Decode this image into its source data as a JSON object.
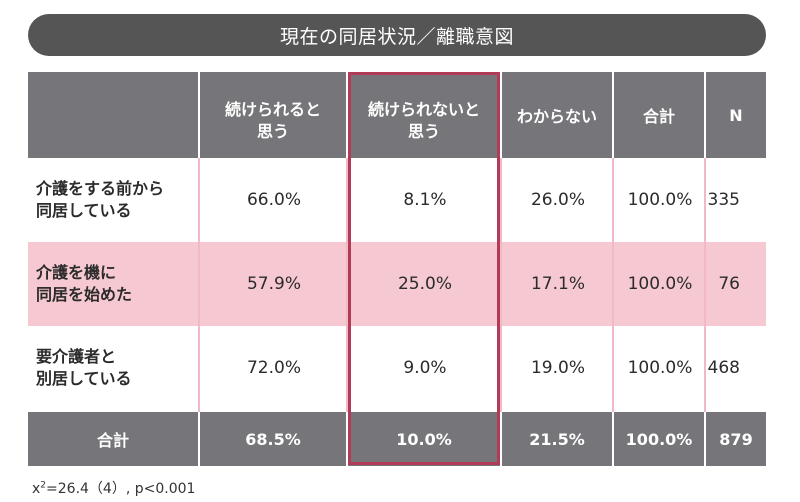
{
  "title": "現在の同居状況／離職意図",
  "chart_data": {
    "type": "table",
    "columns": [
      "",
      "続けられると\n思う",
      "続けられないと\n思う",
      "わからない",
      "合計",
      "N"
    ],
    "rows": [
      {
        "label": "介護をする前から\n同居している",
        "values": [
          "66.0%",
          "8.1%",
          "26.0%",
          "100.0%",
          "335"
        ]
      },
      {
        "label": "介護を機に\n同居を始めた",
        "values": [
          "57.9%",
          "25.0%",
          "17.1%",
          "100.0%",
          "76"
        ]
      },
      {
        "label": "要介護者と\n別居している",
        "values": [
          "72.0%",
          "9.0%",
          "19.0%",
          "100.0%",
          "468"
        ]
      }
    ],
    "total_row": {
      "label": "合計",
      "values": [
        "68.5%",
        "10.0%",
        "21.5%",
        "100.0%",
        "879"
      ]
    },
    "highlighted_column": "続けられないと\n思う"
  },
  "stat": {
    "chi": "x",
    "power": "2",
    "value": "=26.4（4）, p<0.001"
  }
}
